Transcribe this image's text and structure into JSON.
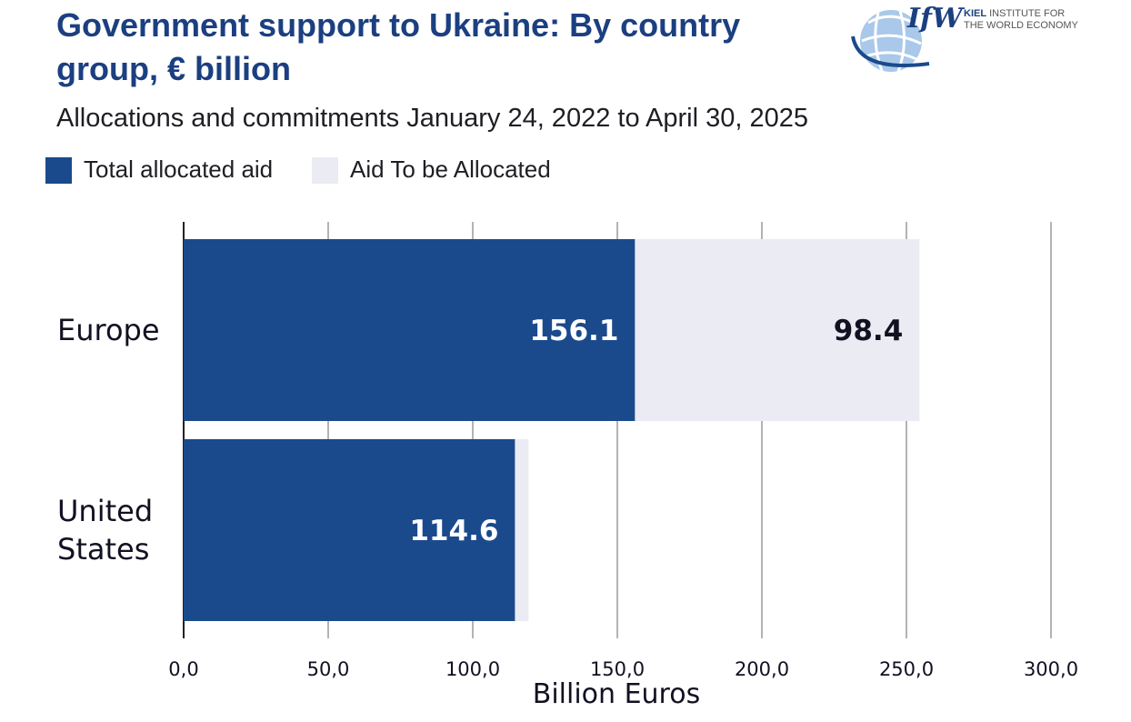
{
  "chart_data": {
    "type": "bar",
    "orientation": "horizontal",
    "stacked": true,
    "title": "Government support to Ukraine: By country group, € billion",
    "subtitle": "Allocations and commitments January 24, 2022 to April 30, 2025",
    "categories": [
      {
        "lines": [
          "Europe"
        ]
      },
      {
        "lines": [
          "United",
          "States"
        ]
      }
    ],
    "series": [
      {
        "name": "Total allocated aid",
        "color": "#1b4a8c",
        "values": [
          156.1,
          114.6
        ],
        "labels": [
          "156.1",
          "114.6"
        ]
      },
      {
        "name": "Aid To be Allocated",
        "color": "#ebebf3",
        "values": [
          98.4,
          4.7
        ],
        "labels": [
          "98.4",
          ""
        ]
      }
    ],
    "xlabel": "Billion Euros",
    "xlim": [
      0,
      300
    ],
    "ticks": [
      0,
      50,
      100,
      150,
      200,
      250,
      300
    ],
    "tick_labels": [
      "0,0",
      "50,0",
      "100,0",
      "150,0",
      "200,0",
      "250,0",
      "300,0"
    ],
    "grid": true,
    "legend_position": "top-left"
  },
  "logo": {
    "mark": "IfW",
    "line1_bold": "KIEL",
    "line1_rest": " INSTITUTE FOR",
    "line2": "THE WORLD ECONOMY",
    "icon": "globe-icon"
  }
}
